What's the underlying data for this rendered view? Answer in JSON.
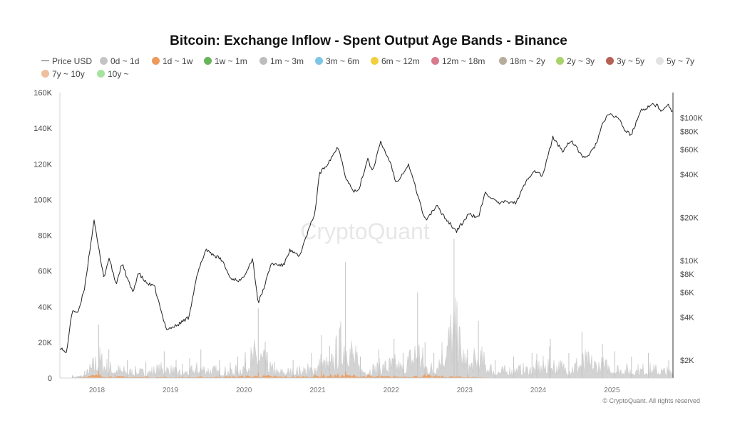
{
  "chart_data": {
    "type": "line",
    "title": "Bitcoin: Exchange Inflow - Spent Output Age Bands - Binance",
    "watermark": "CryptoQuant",
    "copyright": "© CryptoQuant. All rights reserved",
    "legend_placement": "top",
    "grid": false,
    "legend": [
      {
        "name": "Price USD",
        "kind": "line",
        "color": "#555555"
      },
      {
        "name": "0d ~ 1d",
        "kind": "dot",
        "color": "#c4c4c4"
      },
      {
        "name": "1d ~ 1w",
        "kind": "dot",
        "color": "#ed9a5b"
      },
      {
        "name": "1w ~ 1m",
        "kind": "dot",
        "color": "#67b55a"
      },
      {
        "name": "1m ~ 3m",
        "kind": "dot",
        "color": "#bdbdbd"
      },
      {
        "name": "3m ~ 6m",
        "kind": "dot",
        "color": "#7cc6e6"
      },
      {
        "name": "6m ~ 12m",
        "kind": "dot",
        "color": "#f2cf3c"
      },
      {
        "name": "12m ~ 18m",
        "kind": "dot",
        "color": "#d97a8c"
      },
      {
        "name": "18m ~ 2y",
        "kind": "dot",
        "color": "#b5ad9c"
      },
      {
        "name": "2y ~ 3y",
        "kind": "dot",
        "color": "#a8d36a"
      },
      {
        "name": "3y ~ 5y",
        "kind": "dot",
        "color": "#b76055"
      },
      {
        "name": "5y ~ 7y",
        "kind": "dot",
        "color": "#e3e3e3"
      },
      {
        "name": "7y ~ 10y",
        "kind": "dot",
        "color": "#efbf9d"
      },
      {
        "name": "10y ~",
        "kind": "dot",
        "color": "#a6e3a0"
      }
    ],
    "x_ticks": [
      "2018",
      "2019",
      "2020",
      "2021",
      "2022",
      "2023",
      "2024",
      "2025"
    ],
    "x_range": [
      "2017-07-01",
      "2025-10-31"
    ],
    "y_left": {
      "range": [
        0,
        160000
      ],
      "ticks": [
        0,
        20000,
        40000,
        60000,
        80000,
        100000,
        120000,
        140000,
        160000
      ],
      "tick_labels": [
        "0",
        "20K",
        "40K",
        "60K",
        "80K",
        "100K",
        "120K",
        "140K",
        "160K"
      ]
    },
    "y_right": {
      "scale": "log",
      "range": [
        1500,
        150000
      ],
      "ticks": [
        2000,
        4000,
        6000,
        8000,
        10000,
        20000,
        40000,
        60000,
        80000,
        100000
      ],
      "tick_labels": [
        "$2K",
        "$4K",
        "$6K",
        "$8K",
        "$10K",
        "$20K",
        "$40K",
        "$60K",
        "$80K",
        "$100K"
      ]
    },
    "series": [
      {
        "name": "Price USD",
        "axis": "right",
        "color": "#222222",
        "x": [
          "2017-07-01",
          "2017-08-01",
          "2017-09-01",
          "2017-10-01",
          "2017-11-01",
          "2017-12-17",
          "2018-01-15",
          "2018-02-06",
          "2018-03-01",
          "2018-04-06",
          "2018-05-05",
          "2018-06-28",
          "2018-07-25",
          "2018-09-01",
          "2018-10-15",
          "2018-11-25",
          "2018-12-15",
          "2019-02-01",
          "2019-04-01",
          "2019-05-15",
          "2019-06-26",
          "2019-08-01",
          "2019-09-15",
          "2019-10-25",
          "2019-12-18",
          "2020-02-13",
          "2020-03-12",
          "2020-04-15",
          "2020-05-15",
          "2020-07-15",
          "2020-08-15",
          "2020-10-01",
          "2020-11-15",
          "2020-12-20",
          "2021-01-08",
          "2021-02-15",
          "2021-04-14",
          "2021-05-19",
          "2021-06-22",
          "2021-07-20",
          "2021-09-07",
          "2021-09-29",
          "2021-11-10",
          "2022-01-01",
          "2022-01-24",
          "2022-03-29",
          "2022-05-12",
          "2022-06-18",
          "2022-08-15",
          "2022-10-01",
          "2022-11-21",
          "2023-01-20",
          "2023-03-10",
          "2023-04-14",
          "2023-06-15",
          "2023-08-20",
          "2023-09-11",
          "2023-10-25",
          "2023-12-10",
          "2024-01-23",
          "2024-03-14",
          "2024-05-01",
          "2024-06-10",
          "2024-08-05",
          "2024-09-06",
          "2024-10-15",
          "2024-11-15",
          "2024-12-17",
          "2025-02-01",
          "2025-03-10",
          "2025-04-08",
          "2025-05-22",
          "2025-07-14",
          "2025-08-14",
          "2025-09-01",
          "2025-10-06",
          "2025-10-31"
        ],
        "y": [
          2500,
          2200,
          4500,
          4300,
          6500,
          19000,
          11000,
          7500,
          10500,
          6800,
          9500,
          5900,
          8200,
          7000,
          6500,
          3900,
          3300,
          3500,
          4000,
          8000,
          12000,
          11000,
          10000,
          7500,
          7200,
          10300,
          5000,
          6800,
          9500,
          9200,
          11800,
          10600,
          16000,
          22000,
          40000,
          47000,
          63000,
          39000,
          31000,
          30000,
          52000,
          42000,
          67000,
          47000,
          35000,
          47000,
          29000,
          19000,
          24000,
          19500,
          16000,
          21000,
          20000,
          30000,
          25000,
          26000,
          25000,
          34000,
          43000,
          39000,
          73000,
          58000,
          70000,
          54000,
          53000,
          66000,
          90000,
          106000,
          100000,
          80000,
          76000,
          111000,
          122000,
          123000,
          109000,
          126000,
          108000
        ]
      },
      {
        "name": "0d ~ 1d",
        "axis": "left",
        "color": "#c4c4c4",
        "x": [
          "2017-09-01",
          "2017-11-01",
          "2018-01-10",
          "2018-03-01",
          "2018-06-01",
          "2018-09-01",
          "2018-12-01",
          "2019-03-01",
          "2019-06-01",
          "2019-09-01",
          "2019-12-01",
          "2020-03-12",
          "2020-06-01",
          "2020-09-01",
          "2020-12-01",
          "2021-01-20",
          "2021-03-01",
          "2021-05-19",
          "2021-08-01",
          "2021-11-01",
          "2022-01-15",
          "2022-03-01",
          "2022-05-12",
          "2022-06-18",
          "2022-08-01",
          "2022-11-09",
          "2023-01-15",
          "2023-03-10",
          "2023-06-01",
          "2023-09-01",
          "2023-12-01",
          "2024-03-01",
          "2024-06-01",
          "2024-08-05",
          "2024-11-15",
          "2025-01-15",
          "2025-04-08",
          "2025-07-01",
          "2025-10-10",
          "2025-10-31"
        ],
        "y": [
          1500,
          4000,
          30000,
          16000,
          10000,
          9000,
          15000,
          8000,
          16000,
          10000,
          12000,
          39000,
          9000,
          10000,
          14000,
          24000,
          18000,
          65000,
          12000,
          16000,
          22000,
          14000,
          48000,
          20000,
          14000,
          78000,
          16000,
          32000,
          10000,
          12000,
          14000,
          22000,
          14000,
          26000,
          19000,
          15000,
          12000,
          14000,
          10000,
          9000
        ]
      },
      {
        "name": "1d ~ 1w",
        "axis": "left",
        "color": "#ed9a5b",
        "x": [
          "2017-09-01",
          "2018-01-10",
          "2018-04-01",
          "2018-09-01",
          "2019-03-01",
          "2019-09-01",
          "2020-03-12",
          "2020-09-01",
          "2021-01-20",
          "2021-05-19",
          "2021-11-01",
          "2022-06-18",
          "2023-01-15",
          "2023-07-01"
        ],
        "y": [
          200,
          4000,
          1800,
          1200,
          1000,
          1500,
          3000,
          1500,
          3500,
          3800,
          2000,
          2800,
          1500,
          0
        ]
      }
    ]
  }
}
